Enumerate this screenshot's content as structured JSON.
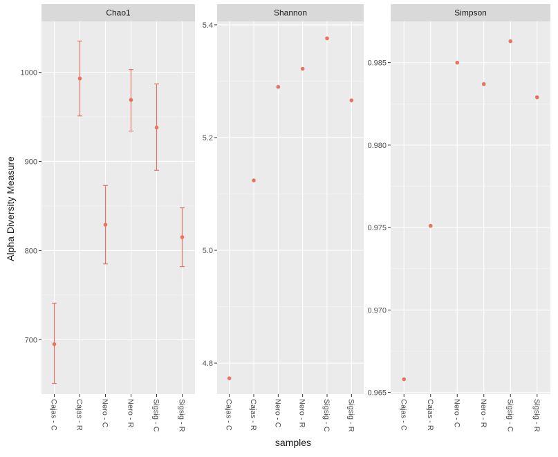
{
  "ylabel": "Alpha Diversity Measure",
  "xlabel": "samples",
  "colors": {
    "panel_bg": "#ebebeb",
    "strip_bg": "#d9d9d9",
    "grid_major": "#ffffff",
    "point": "#e8735f",
    "text": "#1a1a1a",
    "tick_text": "#4d4d4d"
  },
  "chart_data": [
    {
      "type": "scatter",
      "title": "Chao1",
      "categories": [
        "Cajas - C",
        "Cajas - R",
        "Nero - C",
        "Nero - R",
        "Sigsig - C",
        "Sigsig - R"
      ],
      "values": [
        695,
        993,
        829,
        969,
        938,
        815
      ],
      "error_low": [
        651,
        951,
        785,
        934,
        890,
        782
      ],
      "error_high": [
        741,
        1035,
        873,
        1003,
        987,
        848
      ],
      "yticks": [
        700,
        800,
        900,
        1000
      ],
      "ytick_labels": [
        "700",
        "800",
        "900",
        "1000"
      ],
      "ylim": [
        639,
        1057
      ]
    },
    {
      "type": "scatter",
      "title": "Shannon",
      "categories": [
        "Cajas - C",
        "Cajas - R",
        "Nero - C",
        "Nero - R",
        "Sigsig - C",
        "Sigsig - R"
      ],
      "values": [
        4.773,
        5.124,
        5.29,
        5.322,
        5.376,
        5.266
      ],
      "yticks": [
        4.8,
        5.0,
        5.2,
        5.4
      ],
      "ytick_labels": [
        "4.8",
        "5.0",
        "5.2",
        "5.4"
      ],
      "ylim": [
        4.745,
        5.406
      ]
    },
    {
      "type": "scatter",
      "title": "Simpson",
      "categories": [
        "Cajas - C",
        "Cajas - R",
        "Nero - C",
        "Nero - R",
        "Sigsig - C",
        "Sigsig - R"
      ],
      "values": [
        0.9658,
        0.9751,
        0.985,
        0.9837,
        0.9863,
        0.9829
      ],
      "yticks": [
        0.965,
        0.97,
        0.975,
        0.98,
        0.985
      ],
      "ytick_labels": [
        "0.965",
        "0.970",
        "0.975",
        "0.980",
        "0.985"
      ],
      "ylim": [
        0.9649,
        0.9875
      ]
    }
  ]
}
